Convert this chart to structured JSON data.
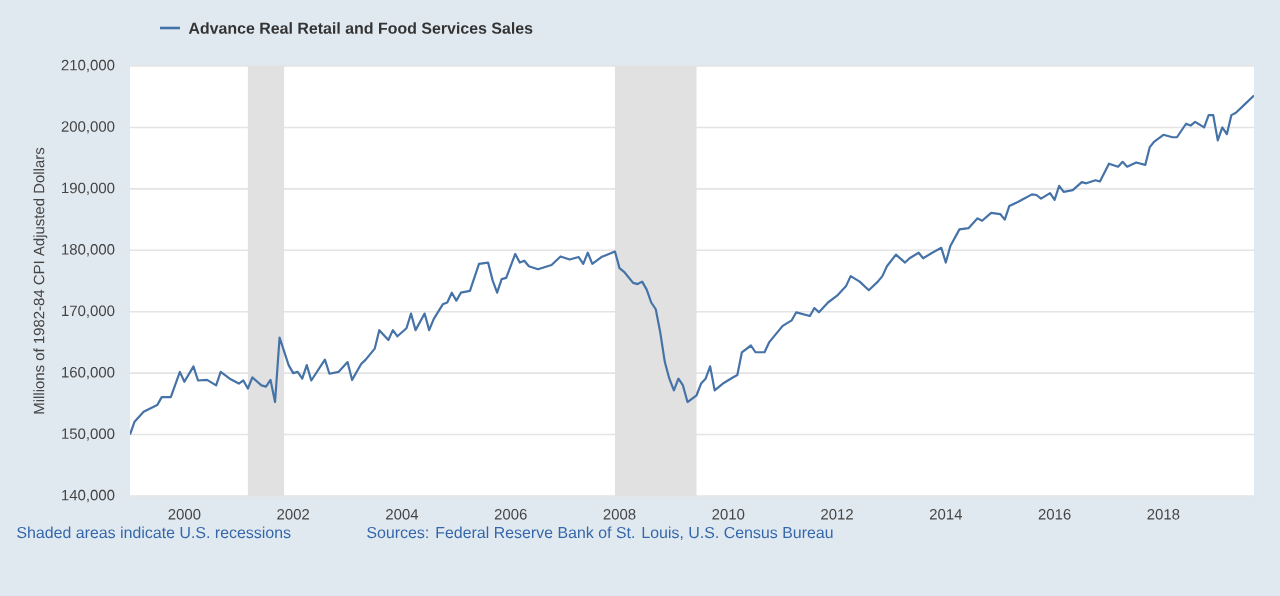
{
  "chart_data": {
    "type": "line",
    "ylabel": "Millions of 1982-84 CPI Adjusted Dollars",
    "x": [
      "1999-01",
      "1999-02",
      "1999-04",
      "1999-07",
      "1999-08",
      "1999-10",
      "1999-12",
      "2000-01",
      "2000-03",
      "2000-04",
      "2000-06",
      "2000-08",
      "2000-09",
      "2000-11",
      "2001-01",
      "2001-02",
      "2001-03",
      "2001-04",
      "2001-06",
      "2001-07",
      "2001-08",
      "2001-09",
      "2001-10",
      "2001-12",
      "2002-01",
      "2002-02",
      "2002-03",
      "2002-04",
      "2002-05",
      "2002-08",
      "2002-09",
      "2002-11",
      "2003-01",
      "2003-02",
      "2003-04",
      "2003-05",
      "2003-07",
      "2003-08",
      "2003-10",
      "2003-11",
      "2003-12",
      "2004-02",
      "2004-03",
      "2004-04",
      "2004-06",
      "2004-07",
      "2004-08",
      "2004-10",
      "2004-11",
      "2004-12",
      "2005-01",
      "2005-02",
      "2005-04",
      "2005-06",
      "2005-08",
      "2005-09",
      "2005-10",
      "2005-11",
      "2005-12",
      "2006-02",
      "2006-03",
      "2006-04",
      "2006-05",
      "2006-07",
      "2006-10",
      "2006-12",
      "2007-02",
      "2007-04",
      "2007-05",
      "2007-06",
      "2007-07",
      "2007-09",
      "2007-10",
      "2007-12",
      "2008-01",
      "2008-02",
      "2008-04",
      "2008-05",
      "2008-06",
      "2008-07",
      "2008-08",
      "2008-09",
      "2008-10",
      "2008-11",
      "2008-12",
      "2009-01",
      "2009-02",
      "2009-03",
      "2009-04",
      "2009-06",
      "2009-07",
      "2009-08",
      "2009-09",
      "2009-10",
      "2009-12",
      "2010-02",
      "2010-03",
      "2010-04",
      "2010-06",
      "2010-07",
      "2010-09",
      "2010-10",
      "2011-01",
      "2011-03",
      "2011-04",
      "2011-07",
      "2011-08",
      "2011-09",
      "2011-11",
      "2012-01",
      "2012-03",
      "2012-04",
      "2012-06",
      "2012-08",
      "2012-10",
      "2012-11",
      "2012-12",
      "2013-02",
      "2013-04",
      "2013-05",
      "2013-07",
      "2013-08",
      "2013-10",
      "2013-12",
      "2014-01",
      "2014-02",
      "2014-04",
      "2014-06",
      "2014-08",
      "2014-09",
      "2014-11",
      "2015-01",
      "2015-02",
      "2015-03",
      "2015-05",
      "2015-06",
      "2015-08",
      "2015-09",
      "2015-10",
      "2015-12",
      "2016-01",
      "2016-02",
      "2016-03",
      "2016-05",
      "2016-07",
      "2016-08",
      "2016-10",
      "2016-11",
      "2017-01",
      "2017-03",
      "2017-04",
      "2017-05",
      "2017-07",
      "2017-09",
      "2017-10",
      "2017-11",
      "2018-01",
      "2018-03",
      "2018-04",
      "2018-06",
      "2018-07",
      "2018-08",
      "2018-10",
      "2018-11",
      "2018-12",
      "2019-01",
      "2019-02",
      "2019-03",
      "2019-04",
      "2019-05",
      "2019-07",
      "2019-09"
    ],
    "series": [
      {
        "name": "Advance Real Retail and Food Services Sales",
        "color": "#4572a7",
        "values": [
          150000,
          152100,
          153700,
          154800,
          156100,
          156100,
          160200,
          158600,
          161100,
          158800,
          158900,
          158000,
          160200,
          159100,
          158300,
          158800,
          157500,
          159300,
          158000,
          157800,
          158900,
          155300,
          165800,
          161300,
          160000,
          160200,
          159100,
          161300,
          158800,
          162200,
          159900,
          160200,
          161800,
          158900,
          161500,
          162200,
          164000,
          167000,
          165400,
          167000,
          166000,
          167300,
          169700,
          167000,
          169700,
          167000,
          168800,
          171200,
          171500,
          173100,
          171800,
          173100,
          173400,
          177800,
          178000,
          175100,
          173100,
          175300,
          175500,
          179400,
          178000,
          178300,
          177400,
          176900,
          177600,
          179000,
          178500,
          178900,
          177800,
          179600,
          177800,
          178900,
          179200,
          179800,
          177100,
          176500,
          174700,
          174500,
          174900,
          173600,
          171500,
          170400,
          166600,
          161800,
          159100,
          157200,
          159100,
          158000,
          155300,
          156400,
          158300,
          159100,
          161100,
          157200,
          158400,
          159300,
          159700,
          163400,
          164500,
          163400,
          163400,
          165000,
          167700,
          168600,
          169900,
          169300,
          170600,
          169900,
          171500,
          172600,
          174200,
          175800,
          174900,
          173500,
          174900,
          175800,
          177400,
          179300,
          178000,
          178700,
          179600,
          178700,
          179600,
          180400,
          178000,
          180700,
          183400,
          183600,
          185200,
          184800,
          186100,
          185900,
          185000,
          187200,
          187900,
          188300,
          189100,
          189000,
          188400,
          189300,
          188200,
          190500,
          189500,
          189800,
          191100,
          190900,
          191400,
          191200,
          194100,
          193600,
          194400,
          193600,
          194300,
          193900,
          196800,
          197700,
          198800,
          198400,
          198400,
          200600,
          200300,
          200900,
          200000,
          202000,
          202000,
          197900,
          200000,
          198900,
          202000,
          202400,
          203800,
          205200
        ]
      }
    ],
    "xlim": [
      "1999-01",
      "2019-09"
    ],
    "xticks": [
      "2000",
      "2002",
      "2004",
      "2006",
      "2008",
      "2010",
      "2012",
      "2014",
      "2016",
      "2018"
    ],
    "ylim": [
      140000,
      210000
    ],
    "yticks": [
      {
        "value": 140000,
        "label": "140,000"
      },
      {
        "value": 150000,
        "label": "150,000"
      },
      {
        "value": 160000,
        "label": "160,000"
      },
      {
        "value": 170000,
        "label": "170,000"
      },
      {
        "value": 180000,
        "label": "180,000"
      },
      {
        "value": 190000,
        "label": "190,000"
      },
      {
        "value": 200000,
        "label": "200,000"
      },
      {
        "value": 210000,
        "label": "210,000"
      }
    ],
    "bands": [
      {
        "axis": "x",
        "from": "2001-03",
        "to": "2001-11",
        "color": "#e1e1e1"
      },
      {
        "axis": "x",
        "from": "2007-12",
        "to": "2009-06",
        "color": "#e1e1e1"
      }
    ],
    "grid": "y",
    "legend": "top",
    "annotations": [
      "Shaded areas indicate U.S. recessions",
      "Sources: Federal Reserve Bank of St. Louis, U.S. Census Bureau"
    ]
  }
}
